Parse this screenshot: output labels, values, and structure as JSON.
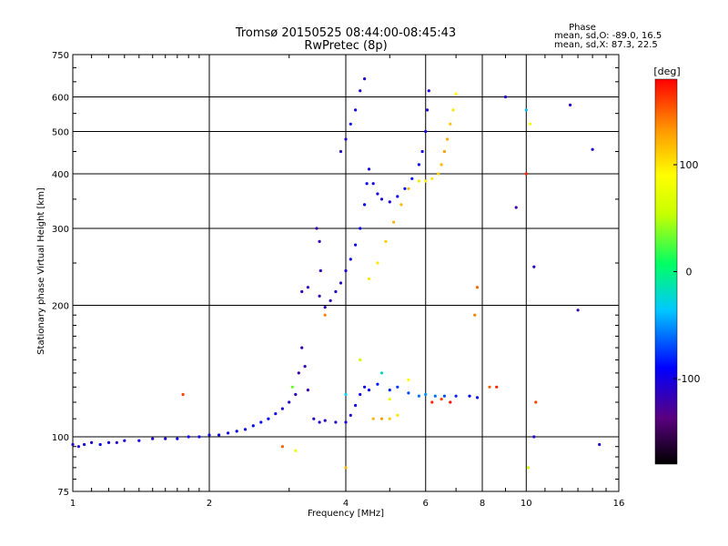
{
  "chart_data": {
    "type": "scatter",
    "title": "Tromsø 20150525 08:44:00-08:45:43",
    "subtitle": "RwPretec (8p)",
    "xlabel": "Frequency [MHz]",
    "ylabel": "Stationary phase Virtual Height [km]",
    "x_scale": "log",
    "y_scale": "log",
    "xlim": [
      1,
      16
    ],
    "ylim": [
      75,
      750
    ],
    "x_ticks": [
      1,
      2,
      4,
      6,
      8,
      10,
      16
    ],
    "y_ticks": [
      75,
      100,
      200,
      300,
      400,
      500,
      600,
      750
    ],
    "grid": true,
    "stats": {
      "heading": "Phase",
      "o_line": "mean, sd,O: -89.0, 16.5",
      "x_line": "mean, sd,X: 87.3, 22.5"
    },
    "colorbar": {
      "label": "[deg]",
      "range": [
        -180,
        180
      ],
      "ticks": [
        100,
        0,
        -100
      ],
      "colors": [
        "#000000",
        "#5a0080",
        "#0000ff",
        "#00c8ff",
        "#00ff64",
        "#c8ff00",
        "#ffff00",
        "#ff9600",
        "#ff0000"
      ]
    },
    "series": [
      {
        "points": [
          [
            1.0,
            96,
            -110
          ],
          [
            1.03,
            95,
            -105
          ],
          [
            1.06,
            96,
            -100
          ],
          [
            1.1,
            97,
            -108
          ],
          [
            1.15,
            96,
            -95
          ],
          [
            1.2,
            97,
            -100
          ],
          [
            1.25,
            97,
            -110
          ],
          [
            1.3,
            98,
            -102
          ],
          [
            1.4,
            98,
            -100
          ],
          [
            1.5,
            99,
            -105
          ],
          [
            1.6,
            99,
            -100
          ],
          [
            1.7,
            99,
            -98
          ],
          [
            1.8,
            100,
            -100
          ],
          [
            1.9,
            100,
            -95
          ],
          [
            2.0,
            101,
            -100
          ],
          [
            2.1,
            101,
            -98
          ],
          [
            2.2,
            102,
            -100
          ],
          [
            2.3,
            103,
            -95
          ],
          [
            2.4,
            104,
            -98
          ],
          [
            2.5,
            106,
            -92
          ],
          [
            2.6,
            108,
            -95
          ],
          [
            2.7,
            110,
            -90
          ],
          [
            2.8,
            113,
            -100
          ],
          [
            2.9,
            116,
            -105
          ],
          [
            3.0,
            120,
            -110
          ],
          [
            3.1,
            125,
            -115
          ],
          [
            3.15,
            140,
            -120
          ],
          [
            3.2,
            160,
            -115
          ],
          [
            3.25,
            145,
            -118
          ],
          [
            3.3,
            128,
            -120
          ],
          [
            3.4,
            110,
            -115
          ],
          [
            3.5,
            108,
            -110
          ],
          [
            3.6,
            109,
            -110
          ],
          [
            3.8,
            108,
            -110
          ],
          [
            4.0,
            108,
            -105
          ],
          [
            4.1,
            112,
            -110
          ],
          [
            4.2,
            118,
            -100
          ],
          [
            4.3,
            125,
            -100
          ],
          [
            4.4,
            130,
            -95
          ],
          [
            4.5,
            128,
            -90
          ],
          [
            4.7,
            132,
            -85
          ],
          [
            5.0,
            128,
            -80
          ],
          [
            5.2,
            130,
            -75
          ],
          [
            5.5,
            126,
            -70
          ],
          [
            5.8,
            124,
            -60
          ],
          [
            6.0,
            125,
            -50
          ],
          [
            6.3,
            124,
            -60
          ],
          [
            6.6,
            124,
            -70
          ],
          [
            7.0,
            124,
            -80
          ],
          [
            7.5,
            124,
            -90
          ],
          [
            7.8,
            123,
            -95
          ],
          [
            3.45,
            300,
            -120
          ],
          [
            3.5,
            280,
            -118
          ],
          [
            3.52,
            240,
            -115
          ],
          [
            3.5,
            210,
            -120
          ],
          [
            3.6,
            198,
            -118
          ],
          [
            3.7,
            205,
            -115
          ],
          [
            3.8,
            215,
            -110
          ],
          [
            3.9,
            225,
            -108
          ],
          [
            4.0,
            240,
            -105
          ],
          [
            4.1,
            255,
            -100
          ],
          [
            4.2,
            275,
            -100
          ],
          [
            4.3,
            300,
            -95
          ],
          [
            4.4,
            340,
            -95
          ],
          [
            4.45,
            380,
            -100
          ],
          [
            4.5,
            410,
            -100
          ],
          [
            4.6,
            380,
            -100
          ],
          [
            4.7,
            360,
            -105
          ],
          [
            4.8,
            350,
            -105
          ],
          [
            5.0,
            345,
            -100
          ],
          [
            5.2,
            355,
            -95
          ],
          [
            5.4,
            370,
            -90
          ],
          [
            5.6,
            390,
            -90
          ],
          [
            5.8,
            420,
            -95
          ],
          [
            5.9,
            450,
            -100
          ],
          [
            6.0,
            500,
            -100
          ],
          [
            6.05,
            560,
            -105
          ],
          [
            6.1,
            620,
            -105
          ],
          [
            3.2,
            215,
            -115
          ],
          [
            3.3,
            220,
            -115
          ],
          [
            3.9,
            450,
            -110
          ],
          [
            4.0,
            480,
            -105
          ],
          [
            4.1,
            520,
            -100
          ],
          [
            4.2,
            560,
            -100
          ],
          [
            4.3,
            620,
            -105
          ],
          [
            4.4,
            660,
            -110
          ],
          [
            4.5,
            230,
            100
          ],
          [
            4.7,
            250,
            100
          ],
          [
            4.9,
            280,
            110
          ],
          [
            5.1,
            310,
            120
          ],
          [
            5.3,
            340,
            120
          ],
          [
            5.5,
            370,
            120
          ],
          [
            5.8,
            385,
            100
          ],
          [
            6.0,
            385,
            95
          ],
          [
            6.2,
            390,
            100
          ],
          [
            6.4,
            400,
            110
          ],
          [
            6.5,
            420,
            120
          ],
          [
            6.6,
            450,
            130
          ],
          [
            6.7,
            480,
            125
          ],
          [
            6.8,
            520,
            115
          ],
          [
            6.9,
            560,
            100
          ],
          [
            7.0,
            610,
            90
          ],
          [
            4.6,
            110,
            120
          ],
          [
            4.8,
            110,
            130
          ],
          [
            5.0,
            110,
            110
          ],
          [
            5.2,
            112,
            100
          ],
          [
            6.2,
            120,
            170
          ],
          [
            6.5,
            122,
            160
          ],
          [
            6.8,
            120,
            175
          ],
          [
            3.05,
            130,
            30
          ],
          [
            4.0,
            125,
            -30
          ],
          [
            4.3,
            150,
            60
          ],
          [
            4.8,
            140,
            -20
          ],
          [
            5.0,
            122,
            80
          ],
          [
            5.5,
            135,
            90
          ],
          [
            1.75,
            125,
            160
          ],
          [
            2.9,
            95,
            150
          ],
          [
            3.1,
            93,
            80
          ],
          [
            3.6,
            190,
            140
          ],
          [
            4.0,
            85,
            120
          ],
          [
            7.7,
            190,
            140
          ],
          [
            7.8,
            220,
            150
          ],
          [
            8.3,
            130,
            150
          ],
          [
            8.6,
            130,
            170
          ],
          [
            9.0,
            600,
            -110
          ],
          [
            9.5,
            335,
            -120
          ],
          [
            10.0,
            400,
            170
          ],
          [
            10.0,
            560,
            -40
          ],
          [
            10.2,
            520,
            90
          ],
          [
            10.4,
            245,
            -110
          ],
          [
            10.5,
            120,
            160
          ],
          [
            10.4,
            100,
            -110
          ],
          [
            12.5,
            575,
            -110
          ],
          [
            13.0,
            195,
            -120
          ],
          [
            14.0,
            455,
            -110
          ],
          [
            14.5,
            96,
            -110
          ],
          [
            10.1,
            85,
            60
          ]
        ]
      }
    ]
  }
}
